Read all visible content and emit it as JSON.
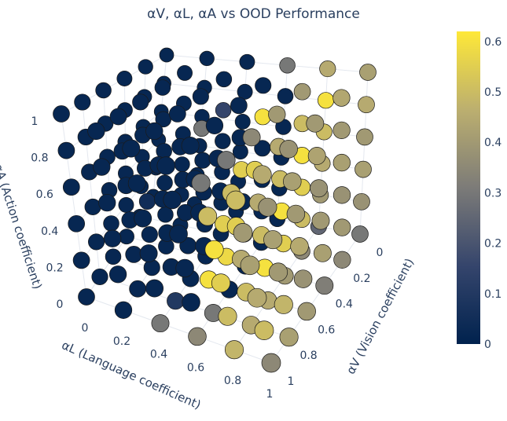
{
  "title": "αV, αL, αA vs OOD Performance",
  "chart_data": {
    "type": "scatter3d",
    "title": "αV, αL, αA vs OOD Performance",
    "axes": {
      "x": {
        "label": "αV (Vision coefficient)",
        "ticks": [
          "0",
          "0.2",
          "0.4",
          "0.6",
          "0.8",
          "1"
        ],
        "range": [
          0,
          1
        ]
      },
      "y": {
        "label": "αL (Language coefficient)",
        "ticks": [
          "0",
          "0.2",
          "0.4",
          "0.6",
          "0.8",
          "1"
        ],
        "range": [
          0,
          1
        ]
      },
      "z": {
        "label": "αA (Action coefficient)",
        "ticks": [
          "0",
          "0.2",
          "0.4",
          "0.6",
          "0.8",
          "1"
        ],
        "range": [
          0,
          1
        ]
      }
    },
    "grid_values": [
      0,
      0.2,
      0.4,
      0.6,
      0.8,
      1
    ],
    "values_order": "values[αL index][αV index][αA index]",
    "values": [
      [
        [
          0.02,
          0.02,
          0.02,
          0.02,
          0.02,
          0.02
        ],
        [
          0.02,
          0.02,
          0.02,
          0.02,
          0.02,
          0.02
        ],
        [
          0.02,
          0.02,
          0.02,
          0.02,
          0.02,
          0.02
        ],
        [
          0.02,
          0.02,
          0.02,
          0.02,
          0.02,
          0.02
        ],
        [
          0.02,
          0.02,
          0.02,
          0.02,
          0.02,
          0.02
        ],
        [
          0.02,
          0.02,
          0.02,
          0.02,
          0.02,
          0.02
        ]
      ],
      [
        [
          0.02,
          0.02,
          0.02,
          0.02,
          0.02,
          0.02
        ],
        [
          0.02,
          0.02,
          0.02,
          0.02,
          0.02,
          0.02
        ],
        [
          0.02,
          0.02,
          0.02,
          0.02,
          0.02,
          0.02
        ],
        [
          0.02,
          0.02,
          0.05,
          0.02,
          0.02,
          0.02
        ],
        [
          0.02,
          0.02,
          0.02,
          0.02,
          0.02,
          0.02
        ],
        [
          0.02,
          0.02,
          0.02,
          0.02,
          0.02,
          0.02
        ]
      ],
      [
        [
          0.02,
          0.02,
          0.02,
          0.02,
          0.02,
          0.02
        ],
        [
          0.02,
          0.02,
          0.02,
          0.02,
          0.15,
          0.02
        ],
        [
          0.02,
          0.02,
          0.02,
          0.02,
          0.3,
          0.02
        ],
        [
          0.02,
          0.02,
          0.02,
          0.02,
          0.02,
          0.02
        ],
        [
          0.1,
          0.02,
          0.02,
          0.02,
          0.02,
          0.02
        ],
        [
          0.3,
          0.02,
          0.02,
          0.02,
          0.02,
          0.02
        ]
      ],
      [
        [
          0.02,
          0.02,
          0.02,
          0.02,
          0.02,
          0.3
        ],
        [
          0.02,
          0.02,
          0.02,
          0.02,
          0.6,
          0.02
        ],
        [
          0.02,
          0.02,
          0.02,
          0.55,
          0.02,
          0.02
        ],
        [
          0.02,
          0.58,
          0.55,
          0.02,
          0.02,
          0.02
        ],
        [
          0.3,
          0.6,
          0.02,
          0.02,
          0.02,
          0.02
        ],
        [
          0.35,
          0.02,
          0.02,
          0.02,
          0.02,
          0.02
        ]
      ],
      [
        [
          0.25,
          0.4,
          0.45,
          0.5,
          0.6,
          0.45
        ],
        [
          0.35,
          0.5,
          0.55,
          0.6,
          0.5,
          0.4
        ],
        [
          0.4,
          0.55,
          0.6,
          0.5,
          0.45,
          0.4
        ],
        [
          0.45,
          0.6,
          0.5,
          0.45,
          0.55,
          0.35
        ],
        [
          0.45,
          0.5,
          0.45,
          0.55,
          0.5,
          0.3
        ],
        [
          0.48,
          0.5,
          0.55,
          0.6,
          0.5,
          0.3
        ]
      ],
      [
        [
          0.3,
          0.38,
          0.42,
          0.4,
          0.45,
          0.42
        ],
        [
          0.35,
          0.4,
          0.38,
          0.42,
          0.4,
          0.44
        ],
        [
          0.32,
          0.42,
          0.4,
          0.38,
          0.43,
          0.4
        ],
        [
          0.4,
          0.38,
          0.45,
          0.4,
          0.42,
          0.38
        ],
        [
          0.42,
          0.48,
          0.4,
          0.42,
          0.38,
          0.45
        ],
        [
          0.35,
          0.5,
          0.45,
          0.42,
          0.4,
          0.5
        ]
      ]
    ],
    "colorbar": {
      "colorscale": "cividis",
      "range": [
        0,
        0.62
      ],
      "ticks": [
        "0",
        "0.1",
        "0.2",
        "0.3",
        "0.4",
        "0.5",
        "0.6"
      ]
    }
  }
}
